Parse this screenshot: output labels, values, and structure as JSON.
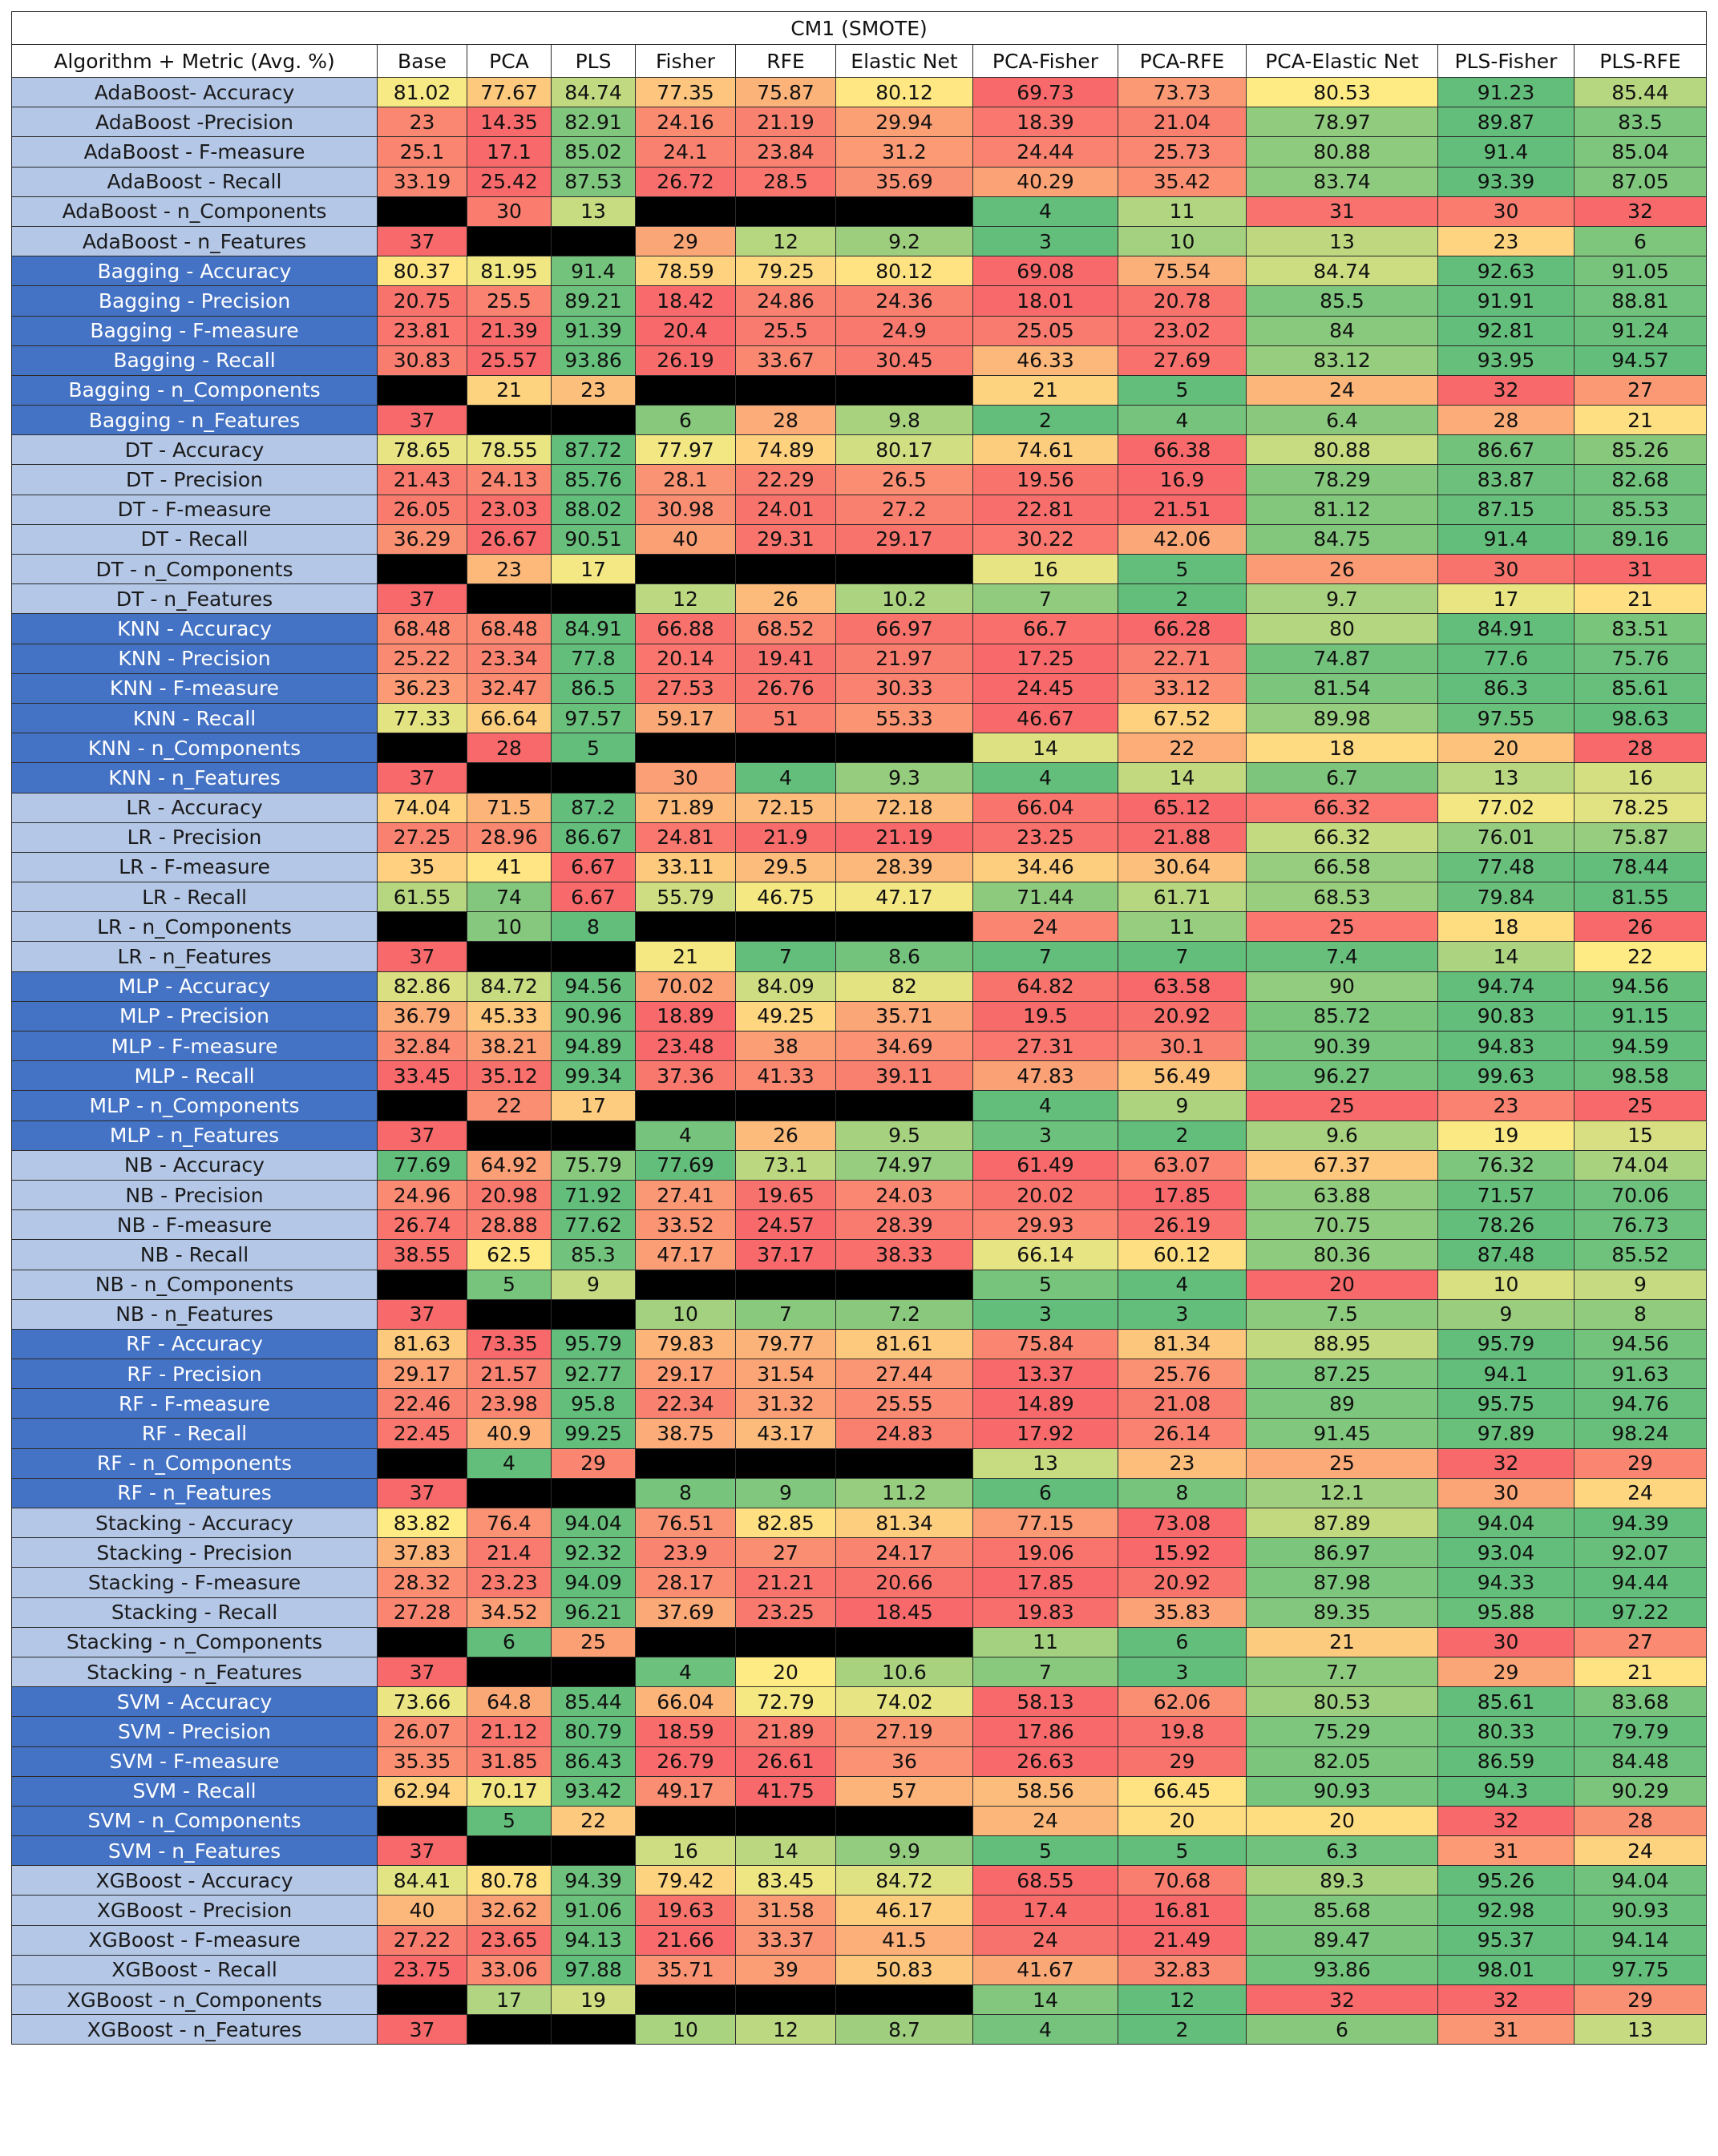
{
  "chart_data": {
    "type": "table",
    "title": "CM1 (SMOTE)",
    "corner_header": "Algorithm + Metric (Avg. %)",
    "columns": [
      "Base",
      "PCA",
      "PLS",
      "Fisher",
      "RFE",
      "Elastic Net",
      "PCA-Fisher",
      "PCA-RFE",
      "PCA-Elastic Net",
      "PLS-Fisher",
      "PLS-RFE"
    ],
    "rows": [
      {
        "label": "AdaBoost- Accuracy",
        "values": [
          81.02,
          77.67,
          84.74,
          77.35,
          75.87,
          80.12,
          69.73,
          73.73,
          80.53,
          91.23,
          85.44
        ]
      },
      {
        "label": "AdaBoost -Precision",
        "values": [
          23,
          14.35,
          82.91,
          24.16,
          21.19,
          29.94,
          18.39,
          21.04,
          78.97,
          89.87,
          83.5
        ]
      },
      {
        "label": "AdaBoost - F-measure",
        "values": [
          25.1,
          17.1,
          85.02,
          24.1,
          23.84,
          31.2,
          24.44,
          25.73,
          80.88,
          91.4,
          85.04
        ]
      },
      {
        "label": "AdaBoost - Recall",
        "values": [
          33.19,
          25.42,
          87.53,
          26.72,
          28.5,
          35.69,
          40.29,
          35.42,
          83.74,
          93.39,
          87.05
        ]
      },
      {
        "label": "AdaBoost - n_Components",
        "values": [
          null,
          30,
          13,
          null,
          null,
          null,
          4,
          11,
          31,
          30,
          32
        ]
      },
      {
        "label": "AdaBoost - n_Features",
        "values": [
          37,
          null,
          null,
          29,
          12,
          9.2,
          3,
          10,
          13,
          23,
          6
        ]
      },
      {
        "label": "Bagging - Accuracy",
        "values": [
          80.37,
          81.95,
          91.4,
          78.59,
          79.25,
          80.12,
          69.08,
          75.54,
          84.74,
          92.63,
          91.05
        ]
      },
      {
        "label": "Bagging - Precision",
        "values": [
          20.75,
          25.5,
          89.21,
          18.42,
          24.86,
          24.36,
          18.01,
          20.78,
          85.5,
          91.91,
          88.81
        ]
      },
      {
        "label": "Bagging - F-measure",
        "values": [
          23.81,
          21.39,
          91.39,
          20.4,
          25.5,
          24.9,
          25.05,
          23.02,
          84,
          92.81,
          91.24
        ]
      },
      {
        "label": "Bagging - Recall",
        "values": [
          30.83,
          25.57,
          93.86,
          26.19,
          33.67,
          30.45,
          46.33,
          27.69,
          83.12,
          93.95,
          94.57
        ]
      },
      {
        "label": "Bagging - n_Components",
        "values": [
          null,
          21,
          23,
          null,
          null,
          null,
          21,
          5,
          24,
          32,
          27
        ]
      },
      {
        "label": "Bagging - n_Features",
        "values": [
          37,
          null,
          null,
          6,
          28,
          9.8,
          2,
          4,
          6.4,
          28,
          21
        ]
      },
      {
        "label": "DT - Accuracy",
        "values": [
          78.65,
          78.55,
          87.72,
          77.97,
          74.89,
          80.17,
          74.61,
          66.38,
          80.88,
          86.67,
          85.26
        ]
      },
      {
        "label": "DT - Precision",
        "values": [
          21.43,
          24.13,
          85.76,
          28.1,
          22.29,
          26.5,
          19.56,
          16.9,
          78.29,
          83.87,
          82.68
        ]
      },
      {
        "label": "DT - F-measure",
        "values": [
          26.05,
          23.03,
          88.02,
          30.98,
          24.01,
          27.2,
          22.81,
          21.51,
          81.12,
          87.15,
          85.53
        ]
      },
      {
        "label": "DT - Recall",
        "values": [
          36.29,
          26.67,
          90.51,
          40,
          29.31,
          29.17,
          30.22,
          42.06,
          84.75,
          91.4,
          89.16
        ]
      },
      {
        "label": "DT - n_Components",
        "values": [
          null,
          23,
          17,
          null,
          null,
          null,
          16,
          5,
          26,
          30,
          31
        ]
      },
      {
        "label": "DT - n_Features",
        "values": [
          37,
          null,
          null,
          12,
          26,
          10.2,
          7,
          2,
          9.7,
          17,
          21
        ]
      },
      {
        "label": "KNN - Accuracy",
        "values": [
          68.48,
          68.48,
          84.91,
          66.88,
          68.52,
          66.97,
          66.7,
          66.28,
          80,
          84.91,
          83.51
        ]
      },
      {
        "label": "KNN - Precision",
        "values": [
          25.22,
          23.34,
          77.8,
          20.14,
          19.41,
          21.97,
          17.25,
          22.71,
          74.87,
          77.6,
          75.76
        ]
      },
      {
        "label": "KNN - F-measure",
        "values": [
          36.23,
          32.47,
          86.5,
          27.53,
          26.76,
          30.33,
          24.45,
          33.12,
          81.54,
          86.3,
          85.61
        ]
      },
      {
        "label": "KNN - Recall",
        "values": [
          77.33,
          66.64,
          97.57,
          59.17,
          51,
          55.33,
          46.67,
          67.52,
          89.98,
          97.55,
          98.63
        ]
      },
      {
        "label": "KNN - n_Components",
        "values": [
          null,
          28,
          5,
          null,
          null,
          null,
          14,
          22,
          18,
          20,
          28
        ]
      },
      {
        "label": "KNN - n_Features",
        "values": [
          37,
          null,
          null,
          30,
          4,
          9.3,
          4,
          14,
          6.7,
          13,
          16
        ]
      },
      {
        "label": "LR - Accuracy",
        "values": [
          74.04,
          71.5,
          87.2,
          71.89,
          72.15,
          72.18,
          66.04,
          65.12,
          66.32,
          77.02,
          78.25
        ]
      },
      {
        "label": "LR - Precision",
        "values": [
          27.25,
          28.96,
          86.67,
          24.81,
          21.9,
          21.19,
          23.25,
          21.88,
          66.32,
          76.01,
          75.87
        ]
      },
      {
        "label": "LR - F-measure",
        "values": [
          35,
          41,
          6.67,
          33.11,
          29.5,
          28.39,
          34.46,
          30.64,
          66.58,
          77.48,
          78.44
        ]
      },
      {
        "label": "LR - Recall",
        "values": [
          61.55,
          74,
          6.67,
          55.79,
          46.75,
          47.17,
          71.44,
          61.71,
          68.53,
          79.84,
          81.55
        ]
      },
      {
        "label": "LR - n_Components",
        "values": [
          null,
          10,
          8,
          null,
          null,
          null,
          24,
          11,
          25,
          18,
          26
        ]
      },
      {
        "label": "LR - n_Features",
        "values": [
          37,
          null,
          null,
          21,
          7,
          8.6,
          7,
          7,
          7.4,
          14,
          22
        ]
      },
      {
        "label": "MLP - Accuracy",
        "values": [
          82.86,
          84.72,
          94.56,
          70.02,
          84.09,
          82,
          64.82,
          63.58,
          90,
          94.74,
          94.56
        ]
      },
      {
        "label": "MLP -  Precision",
        "values": [
          36.79,
          45.33,
          90.96,
          18.89,
          49.25,
          35.71,
          19.5,
          20.92,
          85.72,
          90.83,
          91.15
        ]
      },
      {
        "label": "MLP -  F-measure",
        "values": [
          32.84,
          38.21,
          94.89,
          23.48,
          38,
          34.69,
          27.31,
          30.1,
          90.39,
          94.83,
          94.59
        ]
      },
      {
        "label": "MLP -  Recall",
        "values": [
          33.45,
          35.12,
          99.34,
          37.36,
          41.33,
          39.11,
          47.83,
          56.49,
          96.27,
          99.63,
          98.58
        ]
      },
      {
        "label": "MLP - n_Components",
        "values": [
          null,
          22,
          17,
          null,
          null,
          null,
          4,
          9,
          25,
          23,
          25
        ]
      },
      {
        "label": "MLP - n_Features",
        "values": [
          37,
          null,
          null,
          4,
          26,
          9.5,
          3,
          2,
          9.6,
          19,
          15
        ]
      },
      {
        "label": "NB - Accuracy",
        "values": [
          77.69,
          64.92,
          75.79,
          77.69,
          73.1,
          74.97,
          61.49,
          63.07,
          67.37,
          76.32,
          74.04
        ]
      },
      {
        "label": "NB - Precision",
        "values": [
          24.96,
          20.98,
          71.92,
          27.41,
          19.65,
          24.03,
          20.02,
          17.85,
          63.88,
          71.57,
          70.06
        ]
      },
      {
        "label": "NB - F-measure",
        "values": [
          26.74,
          28.88,
          77.62,
          33.52,
          24.57,
          28.39,
          29.93,
          26.19,
          70.75,
          78.26,
          76.73
        ]
      },
      {
        "label": "NB - Recall",
        "values": [
          38.55,
          62.5,
          85.3,
          47.17,
          37.17,
          38.33,
          66.14,
          60.12,
          80.36,
          87.48,
          85.52
        ]
      },
      {
        "label": "NB - n_Components",
        "values": [
          null,
          5,
          9,
          null,
          null,
          null,
          5,
          4,
          20,
          10,
          9
        ]
      },
      {
        "label": "NB - n_Features",
        "values": [
          37,
          null,
          null,
          10,
          7,
          7.2,
          3,
          3,
          7.5,
          9,
          8
        ]
      },
      {
        "label": "RF - Accuracy",
        "values": [
          81.63,
          73.35,
          95.79,
          79.83,
          79.77,
          81.61,
          75.84,
          81.34,
          88.95,
          95.79,
          94.56
        ]
      },
      {
        "label": "RF - Precision",
        "values": [
          29.17,
          21.57,
          92.77,
          29.17,
          31.54,
          27.44,
          13.37,
          25.76,
          87.25,
          94.1,
          91.63
        ]
      },
      {
        "label": "RF - F-measure",
        "values": [
          22.46,
          23.98,
          95.8,
          22.34,
          31.32,
          25.55,
          14.89,
          21.08,
          89,
          95.75,
          94.76
        ]
      },
      {
        "label": "RF - Recall",
        "values": [
          22.45,
          40.9,
          99.25,
          38.75,
          43.17,
          24.83,
          17.92,
          26.14,
          91.45,
          97.89,
          98.24
        ]
      },
      {
        "label": "RF - n_Components",
        "values": [
          null,
          4,
          29,
          null,
          null,
          null,
          13,
          23,
          25,
          32,
          29
        ]
      },
      {
        "label": "RF - n_Features",
        "values": [
          37,
          null,
          null,
          8,
          9,
          11.2,
          6,
          8,
          12.1,
          30,
          24
        ]
      },
      {
        "label": "Stacking - Accuracy",
        "values": [
          83.82,
          76.4,
          94.04,
          76.51,
          82.85,
          81.34,
          77.15,
          73.08,
          87.89,
          94.04,
          94.39
        ]
      },
      {
        "label": "Stacking - Precision",
        "values": [
          37.83,
          21.4,
          92.32,
          23.9,
          27,
          24.17,
          19.06,
          15.92,
          86.97,
          93.04,
          92.07
        ]
      },
      {
        "label": "Stacking - F-measure",
        "values": [
          28.32,
          23.23,
          94.09,
          28.17,
          21.21,
          20.66,
          17.85,
          20.92,
          87.98,
          94.33,
          94.44
        ]
      },
      {
        "label": "Stacking - Recall",
        "values": [
          27.28,
          34.52,
          96.21,
          37.69,
          23.25,
          18.45,
          19.83,
          35.83,
          89.35,
          95.88,
          97.22
        ]
      },
      {
        "label": "Stacking - n_Components",
        "values": [
          null,
          6,
          25,
          null,
          null,
          null,
          11,
          6,
          21,
          30,
          27
        ]
      },
      {
        "label": "Stacking - n_Features",
        "values": [
          37,
          null,
          null,
          4,
          20,
          10.6,
          7,
          3,
          7.7,
          29,
          21
        ]
      },
      {
        "label": "SVM - Accuracy",
        "values": [
          73.66,
          64.8,
          85.44,
          66.04,
          72.79,
          74.02,
          58.13,
          62.06,
          80.53,
          85.61,
          83.68
        ]
      },
      {
        "label": "SVM - Precision",
        "values": [
          26.07,
          21.12,
          80.79,
          18.59,
          21.89,
          27.19,
          17.86,
          19.8,
          75.29,
          80.33,
          79.79
        ]
      },
      {
        "label": "SVM - F-measure",
        "values": [
          35.35,
          31.85,
          86.43,
          26.79,
          26.61,
          36,
          26.63,
          29,
          82.05,
          86.59,
          84.48
        ]
      },
      {
        "label": "SVM - Recall",
        "values": [
          62.94,
          70.17,
          93.42,
          49.17,
          41.75,
          57,
          58.56,
          66.45,
          90.93,
          94.3,
          90.29
        ]
      },
      {
        "label": "SVM - n_Components",
        "values": [
          null,
          5,
          22,
          null,
          null,
          null,
          24,
          20,
          20,
          32,
          28
        ]
      },
      {
        "label": "SVM - n_Features",
        "values": [
          37,
          null,
          null,
          16,
          14,
          9.9,
          5,
          5,
          6.3,
          31,
          24
        ]
      },
      {
        "label": "XGBoost - Accuracy",
        "values": [
          84.41,
          80.78,
          94.39,
          79.42,
          83.45,
          84.72,
          68.55,
          70.68,
          89.3,
          95.26,
          94.04
        ]
      },
      {
        "label": "XGBoost - Precision",
        "values": [
          40,
          32.62,
          91.06,
          19.63,
          31.58,
          46.17,
          17.4,
          16.81,
          85.68,
          92.98,
          90.93
        ]
      },
      {
        "label": "XGBoost - F-measure",
        "values": [
          27.22,
          23.65,
          94.13,
          21.66,
          33.37,
          41.5,
          24,
          21.49,
          89.47,
          95.37,
          94.14
        ]
      },
      {
        "label": "XGBoost - Recall",
        "values": [
          23.75,
          33.06,
          97.88,
          35.71,
          39,
          50.83,
          41.67,
          32.83,
          93.86,
          98.01,
          97.75
        ]
      },
      {
        "label": "XGBoost - n_Components",
        "values": [
          null,
          17,
          19,
          null,
          null,
          null,
          14,
          12,
          32,
          32,
          29
        ]
      },
      {
        "label": "XGBoost - n_Features",
        "values": [
          37,
          null,
          null,
          10,
          12,
          8.7,
          4,
          2,
          6,
          31,
          13
        ]
      }
    ],
    "groups": [
      {
        "name": "AdaBoost",
        "label_style": "light"
      },
      {
        "name": "Bagging",
        "label_style": "dark"
      },
      {
        "name": "DT",
        "label_style": "light"
      },
      {
        "name": "KNN",
        "label_style": "dark"
      },
      {
        "name": "LR",
        "label_style": "light"
      },
      {
        "name": "MLP",
        "label_style": "dark"
      },
      {
        "name": "NB",
        "label_style": "light"
      },
      {
        "name": "RF",
        "label_style": "dark"
      },
      {
        "name": "Stacking",
        "label_style": "light"
      },
      {
        "name": "SVM",
        "label_style": "dark"
      },
      {
        "name": "XGBoost",
        "label_style": "light"
      }
    ],
    "colors": {
      "label_light": "#b4c7e7",
      "label_dark": "#4472c4",
      "empty_cell": "#000000",
      "scale_low": "#f8696b",
      "scale_mid": "#ffeb84",
      "scale_high": "#63be7b"
    }
  }
}
